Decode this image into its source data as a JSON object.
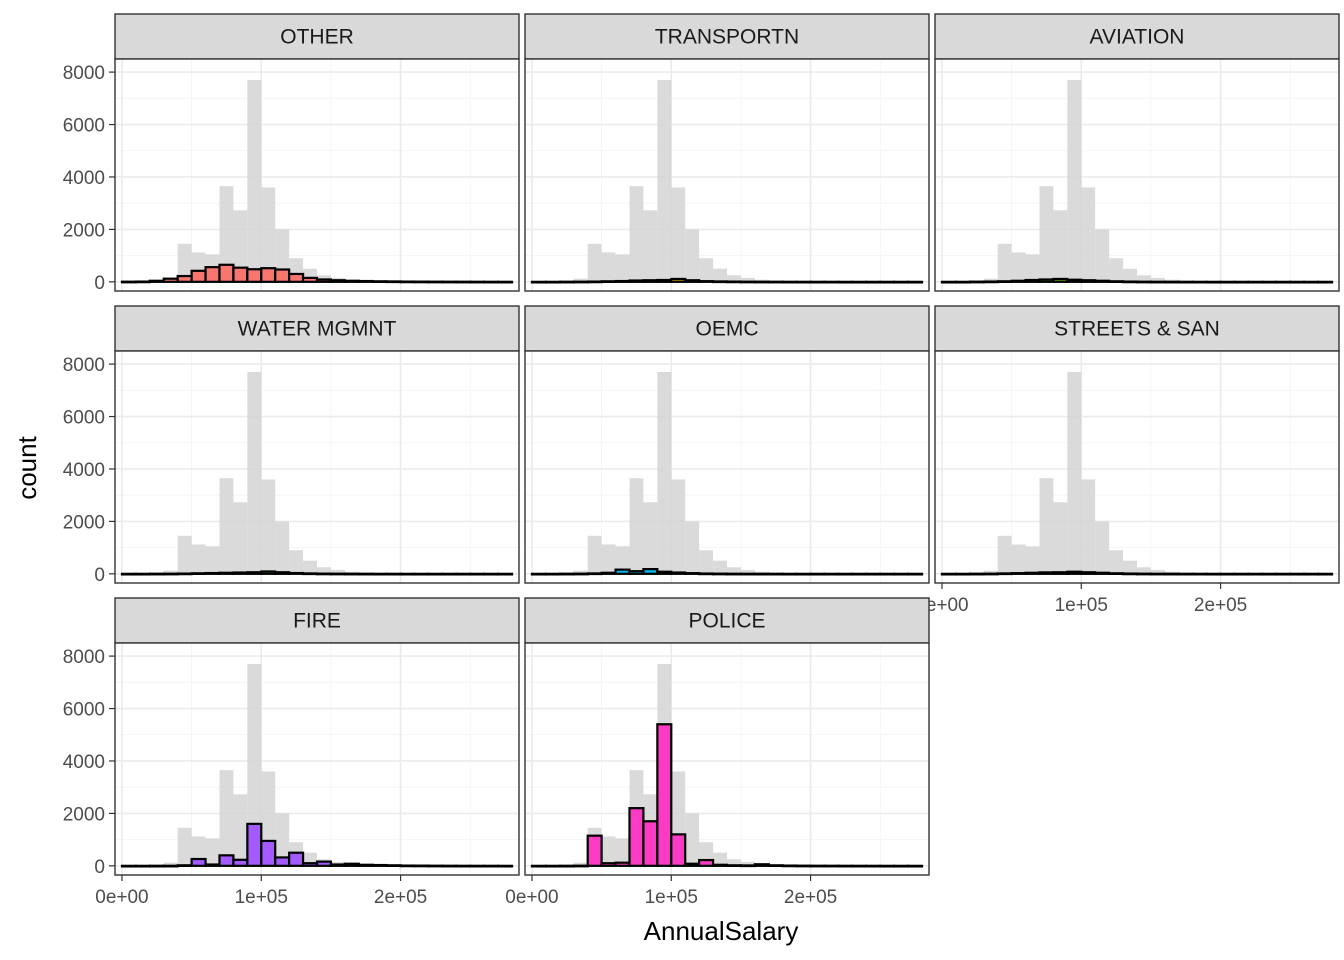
{
  "chart_data": {
    "type": "bar",
    "subtype": "faceted-histogram",
    "xlabel": "AnnualSalary",
    "ylabel": "count",
    "xlim": [
      -5000,
      285000
    ],
    "ylim": [
      -350,
      8500
    ],
    "x_ticks": [
      0,
      100000,
      200000
    ],
    "x_tick_labels": [
      "0e+00",
      "1e+05",
      "2e+05"
    ],
    "y_ticks": [
      0,
      2000,
      4000,
      6000,
      8000
    ],
    "y_tick_labels": [
      "0",
      "2000",
      "4000",
      "6000",
      "8000"
    ],
    "grid": true,
    "bin_width": 10000,
    "bin_centers": [
      5000,
      15000,
      25000,
      35000,
      45000,
      55000,
      65000,
      75000,
      85000,
      95000,
      105000,
      115000,
      125000,
      135000,
      145000,
      155000,
      165000,
      175000,
      185000,
      195000,
      205000,
      215000,
      225000,
      235000,
      245000,
      255000,
      265000,
      275000
    ],
    "background_series": {
      "description": "all departments combined, drawn in grey behind every facet",
      "color": "#d3d3d3",
      "values": [
        20,
        20,
        60,
        120,
        1450,
        1120,
        1050,
        3650,
        2730,
        7700,
        3600,
        2000,
        900,
        500,
        250,
        150,
        80,
        50,
        30,
        20,
        15,
        10,
        8,
        6,
        5,
        4,
        3,
        2
      ]
    },
    "facets": [
      {
        "name": "OTHER",
        "color": "#F8766D",
        "values": [
          5,
          10,
          40,
          120,
          220,
          420,
          560,
          650,
          540,
          480,
          520,
          470,
          300,
          150,
          90,
          60,
          40,
          30,
          20,
          15,
          10,
          8,
          6,
          5,
          4,
          3,
          2,
          1
        ]
      },
      {
        "name": "TRANSPORTN",
        "color": "#C49A00",
        "values": [
          0,
          0,
          2,
          5,
          10,
          20,
          30,
          50,
          60,
          70,
          110,
          60,
          25,
          15,
          10,
          6,
          4,
          3,
          2,
          1,
          1,
          1,
          0,
          0,
          0,
          0,
          0,
          0
        ]
      },
      {
        "name": "AVIATION",
        "color": "#53B400",
        "values": [
          0,
          0,
          5,
          10,
          20,
          40,
          70,
          90,
          110,
          80,
          60,
          40,
          20,
          10,
          5,
          3,
          2,
          1,
          1,
          0,
          0,
          0,
          0,
          0,
          0,
          0,
          0,
          0
        ]
      },
      {
        "name": "WATER MGMNT",
        "color": "#00C094",
        "values": [
          0,
          0,
          2,
          4,
          10,
          20,
          30,
          40,
          50,
          60,
          90,
          60,
          30,
          15,
          8,
          5,
          3,
          2,
          1,
          1,
          0,
          0,
          0,
          0,
          0,
          0,
          0,
          0
        ]
      },
      {
        "name": "OEMC",
        "color": "#00B6EB",
        "values": [
          0,
          0,
          2,
          5,
          15,
          40,
          160,
          100,
          180,
          80,
          50,
          25,
          12,
          6,
          3,
          2,
          1,
          1,
          0,
          0,
          0,
          0,
          0,
          0,
          0,
          0,
          0,
          0
        ]
      },
      {
        "name": "STREETS & SAN",
        "color": "#A58AFF",
        "values": [
          0,
          0,
          2,
          5,
          15,
          25,
          40,
          55,
          60,
          80,
          60,
          40,
          20,
          10,
          5,
          3,
          2,
          1,
          1,
          0,
          0,
          0,
          0,
          0,
          0,
          0,
          0,
          0
        ]
      },
      {
        "name": "FIRE",
        "color": "#A35AFF",
        "values": [
          0,
          0,
          0,
          2,
          20,
          260,
          50,
          400,
          230,
          1600,
          950,
          320,
          500,
          100,
          160,
          50,
          80,
          40,
          30,
          20,
          10,
          8,
          5,
          3,
          2,
          1,
          1,
          0
        ]
      },
      {
        "name": "POLICE",
        "color": "#FB3BC3",
        "values": [
          0,
          0,
          0,
          5,
          1150,
          100,
          120,
          2200,
          1700,
          5400,
          1200,
          80,
          220,
          40,
          20,
          15,
          60,
          20,
          10,
          6,
          4,
          3,
          2,
          1,
          1,
          0,
          0,
          0
        ]
      }
    ]
  }
}
